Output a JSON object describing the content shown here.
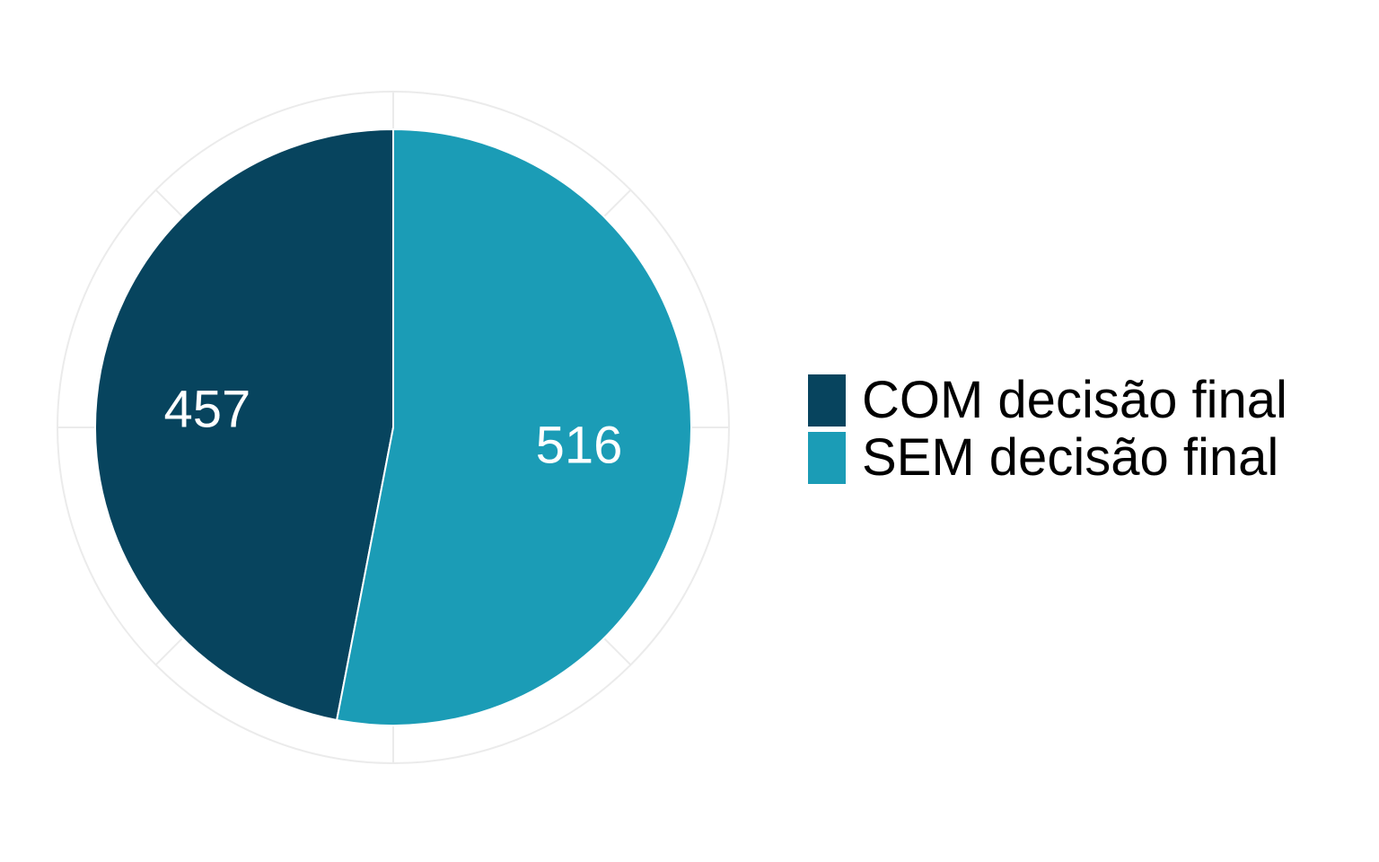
{
  "chart_data": {
    "type": "pie",
    "categories": [
      "COM decisão final",
      "SEM decisão final"
    ],
    "values": [
      457,
      516
    ],
    "colors": [
      "#07445e",
      "#1b9cb6"
    ],
    "data_labels": [
      "457",
      "516"
    ],
    "grid": true,
    "grid_color": "#ebebeb",
    "legend_position": "right",
    "start_angle": "12 o'clock",
    "direction": "counterclockwise for first category"
  }
}
